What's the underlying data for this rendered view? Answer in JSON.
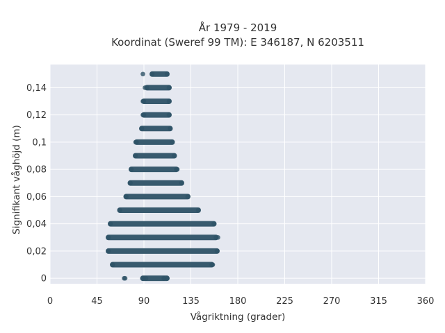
{
  "chart_data": {
    "type": "scatter",
    "title": "År 1979 - 2019",
    "subtitle": "Koordinat (Sweref 99 TM): E 346187, N 6203511",
    "xlabel": "Vågriktning (grader)",
    "ylabel": "Signifikant våghöjd (m)",
    "xlim": [
      0,
      360
    ],
    "ylim": [
      -0.004,
      0.157
    ],
    "x_ticks": [
      {
        "value": 0,
        "label": "0"
      },
      {
        "value": 45,
        "label": "45"
      },
      {
        "value": 90,
        "label": "90"
      },
      {
        "value": 135,
        "label": "135"
      },
      {
        "value": 180,
        "label": "180"
      },
      {
        "value": 225,
        "label": "225"
      },
      {
        "value": 270,
        "label": "270"
      },
      {
        "value": 315,
        "label": "315"
      },
      {
        "value": 360,
        "label": "360"
      }
    ],
    "y_ticks": [
      {
        "value": 0,
        "label": "0"
      },
      {
        "value": 0.02,
        "label": "0,02"
      },
      {
        "value": 0.04,
        "label": "0,04"
      },
      {
        "value": 0.06,
        "label": "0,06"
      },
      {
        "value": 0.08,
        "label": "0,08"
      },
      {
        "value": 0.1,
        "label": "0,1"
      },
      {
        "value": 0.12,
        "label": "0,12"
      },
      {
        "value": 0.14,
        "label": "0,14"
      }
    ],
    "grid": true,
    "legend": "none",
    "marker_color": "#2e5266",
    "background_color": "#e5e8f0",
    "bands": [
      {
        "y": 0.0,
        "x_min": 89,
        "x_max": 112
      },
      {
        "y": 0.01,
        "x_min": 60,
        "x_max": 155
      },
      {
        "y": 0.02,
        "x_min": 56,
        "x_max": 160
      },
      {
        "y": 0.03,
        "x_min": 56,
        "x_max": 159
      },
      {
        "y": 0.04,
        "x_min": 58,
        "x_max": 157
      },
      {
        "y": 0.05,
        "x_min": 67,
        "x_max": 142
      },
      {
        "y": 0.06,
        "x_min": 73,
        "x_max": 132
      },
      {
        "y": 0.07,
        "x_min": 77,
        "x_max": 126
      },
      {
        "y": 0.08,
        "x_min": 78,
        "x_max": 121
      },
      {
        "y": 0.09,
        "x_min": 82,
        "x_max": 119
      },
      {
        "y": 0.1,
        "x_min": 83,
        "x_max": 117
      },
      {
        "y": 0.11,
        "x_min": 88,
        "x_max": 115
      },
      {
        "y": 0.12,
        "x_min": 90,
        "x_max": 114
      },
      {
        "y": 0.13,
        "x_min": 90,
        "x_max": 114
      },
      {
        "y": 0.14,
        "x_min": 93,
        "x_max": 114
      },
      {
        "y": 0.15,
        "x_min": 98,
        "x_max": 112
      }
    ],
    "outliers": [
      {
        "x": 71,
        "y": 0.0
      },
      {
        "x": 72,
        "y": 0.0
      },
      {
        "x": 90,
        "y": 0.0
      },
      {
        "x": 92,
        "y": 0.0
      },
      {
        "x": 109,
        "y": 0.0
      },
      {
        "x": 60,
        "y": 0.01
      },
      {
        "x": 156,
        "y": 0.01
      },
      {
        "x": 161,
        "y": 0.03
      },
      {
        "x": 73,
        "y": 0.06
      },
      {
        "x": 122,
        "y": 0.08
      },
      {
        "x": 82,
        "y": 0.1
      },
      {
        "x": 89,
        "y": 0.12
      },
      {
        "x": 89,
        "y": 0.13
      },
      {
        "x": 91,
        "y": 0.14
      },
      {
        "x": 89,
        "y": 0.15
      }
    ]
  }
}
